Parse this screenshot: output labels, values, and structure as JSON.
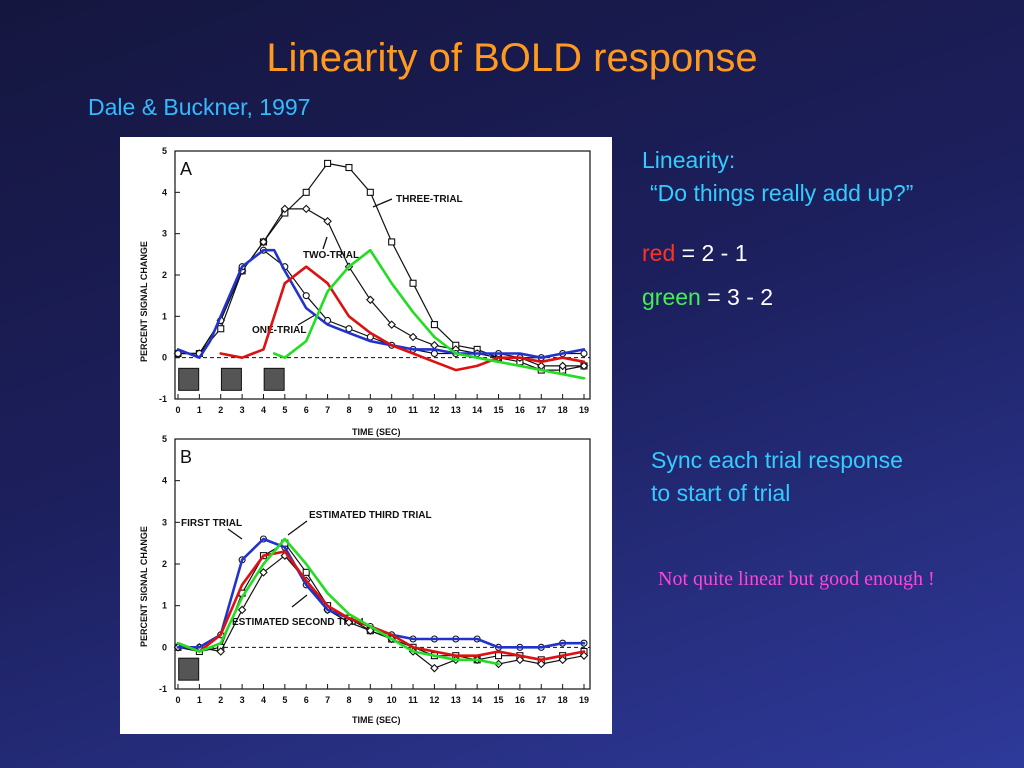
{
  "slide": {
    "title": "Linearity of BOLD response",
    "citation": "Dale & Buckner, 1997",
    "linearity_heading": "Linearity:",
    "linearity_question": "“Do things really add up?”",
    "red_word": "red",
    "red_formula": " = 2 - 1",
    "green_word": "green",
    "green_formula": " = 3 - 2",
    "sync_text_line1": "Sync each trial response",
    "sync_text_line2": "to start of trial",
    "note": "Not quite linear but good enough !"
  },
  "chart_data": [
    {
      "type": "line",
      "panel": "A",
      "xlabel": "TIME (SEC)",
      "ylabel": "PERCENT SIGNAL CHANGE",
      "xlim": [
        0,
        19
      ],
      "ylim": [
        -1,
        5
      ],
      "x_ticks": [
        "0",
        "1",
        "2",
        "3",
        "4",
        "5",
        "6",
        "7",
        "8",
        "9",
        "10",
        "11",
        "12",
        "13",
        "14",
        "15",
        "16",
        "17",
        "18",
        "19"
      ],
      "y_ticks": [
        "-1",
        "0",
        "1",
        "2",
        "3",
        "4",
        "5"
      ],
      "stimuli": [
        0.5,
        2.5,
        4.5
      ],
      "annotations": [
        "THREE-TRIAL",
        "TWO-TRIAL",
        "ONE-TRIAL"
      ],
      "series": [
        {
          "name": "THREE-TRIAL",
          "color": "#111111",
          "marker": "square",
          "x": [
            0,
            1,
            2,
            3,
            4,
            5,
            6,
            7,
            8,
            9,
            10,
            11,
            12,
            13,
            14,
            15,
            16,
            17,
            18,
            19
          ],
          "y": [
            0.1,
            0.1,
            0.7,
            2.1,
            2.8,
            3.5,
            4.0,
            4.7,
            4.6,
            4.0,
            2.8,
            1.8,
            0.8,
            0.3,
            0.2,
            0.0,
            -0.1,
            -0.3,
            -0.3,
            -0.2
          ]
        },
        {
          "name": "TWO-TRIAL",
          "color": "#111111",
          "marker": "diamond",
          "x": [
            0,
            1,
            2,
            3,
            4,
            5,
            6,
            7,
            8,
            9,
            10,
            11,
            12,
            13,
            14,
            15,
            16,
            17,
            18,
            19
          ],
          "y": [
            0.1,
            0.1,
            0.9,
            2.1,
            2.8,
            3.6,
            3.6,
            3.3,
            2.2,
            1.4,
            0.8,
            0.5,
            0.3,
            0.2,
            0.1,
            0.0,
            0.0,
            -0.2,
            -0.2,
            -0.2
          ]
        },
        {
          "name": "ONE-TRIAL",
          "color": "#111111",
          "marker": "circle",
          "x": [
            0,
            1,
            2,
            3,
            4,
            5,
            6,
            7,
            8,
            9,
            10,
            11,
            12,
            13,
            14,
            15,
            16,
            17,
            18,
            19
          ],
          "y": [
            0.1,
            0.1,
            0.9,
            2.2,
            2.6,
            2.2,
            1.5,
            0.9,
            0.7,
            0.5,
            0.3,
            0.2,
            0.1,
            0.1,
            0.1,
            0.1,
            0.0,
            0.0,
            0.1,
            0.1
          ]
        },
        {
          "color": "#2233cc",
          "x": [
            0,
            1,
            1.5,
            2,
            3,
            4,
            4.5,
            5,
            6,
            7,
            8,
            9,
            10,
            11,
            12,
            13,
            14,
            15,
            16,
            17,
            18,
            19
          ],
          "y": [
            0.2,
            0.0,
            0.4,
            1.0,
            2.2,
            2.6,
            2.6,
            2.1,
            1.2,
            0.8,
            0.6,
            0.4,
            0.3,
            0.2,
            0.2,
            0.1,
            0.1,
            0.1,
            0.1,
            0.0,
            0.1,
            0.2
          ]
        },
        {
          "color": "#dd1111",
          "x": [
            2,
            3,
            4,
            5,
            6,
            7,
            8,
            9,
            10,
            11,
            12,
            13,
            14,
            15,
            16,
            17,
            18,
            19
          ],
          "y": [
            0.1,
            0.0,
            0.2,
            1.8,
            2.2,
            1.8,
            1.0,
            0.6,
            0.3,
            0.1,
            -0.1,
            -0.3,
            -0.2,
            0.0,
            0.0,
            -0.1,
            0.0,
            -0.1
          ]
        },
        {
          "color": "#22dd22",
          "x": [
            4.5,
            5,
            6,
            7,
            8,
            9,
            10,
            11,
            12,
            13,
            14,
            15,
            16,
            17,
            18,
            19
          ],
          "y": [
            0.1,
            0.0,
            0.4,
            1.6,
            2.2,
            2.6,
            1.8,
            1.1,
            0.5,
            0.1,
            0.0,
            -0.1,
            -0.2,
            -0.3,
            -0.4,
            -0.5
          ]
        }
      ]
    },
    {
      "type": "line",
      "panel": "B",
      "xlabel": "TIME (SEC)",
      "ylabel": "PERCENT SIGNAL CHANGE",
      "xlim": [
        0,
        19
      ],
      "ylim": [
        -1,
        5
      ],
      "x_ticks": [
        "0",
        "1",
        "2",
        "3",
        "4",
        "5",
        "6",
        "7",
        "8",
        "9",
        "10",
        "11",
        "12",
        "13",
        "14",
        "15",
        "16",
        "17",
        "18",
        "19"
      ],
      "y_ticks": [
        "-1",
        "0",
        "1",
        "2",
        "3",
        "4",
        "5"
      ],
      "stimuli": [
        0.5
      ],
      "annotations": [
        "FIRST TRIAL",
        "ESTIMATED THIRD TRIAL",
        "ESTIMATED SECOND TRIAL"
      ],
      "series": [
        {
          "name": "FIRST TRIAL",
          "color": "#111111",
          "marker": "circle",
          "x": [
            0,
            1,
            2,
            3,
            4,
            5,
            6,
            7,
            8,
            9,
            10,
            11,
            12,
            13,
            14,
            15,
            16,
            17,
            18,
            19
          ],
          "y": [
            0.0,
            0.0,
            0.3,
            2.1,
            2.6,
            2.4,
            1.5,
            0.9,
            0.7,
            0.5,
            0.3,
            0.2,
            0.2,
            0.2,
            0.2,
            0.0,
            0.0,
            0.0,
            0.1,
            0.1
          ]
        },
        {
          "name": "ESTIMATED SECOND TRIAL",
          "color": "#111111",
          "marker": "square",
          "x": [
            0,
            1,
            2,
            3,
            4,
            5,
            6,
            7,
            8,
            9,
            10,
            11,
            12,
            13,
            14,
            15,
            16,
            17,
            18,
            19
          ],
          "y": [
            0.0,
            -0.1,
            0.0,
            1.3,
            2.2,
            2.5,
            1.8,
            1.0,
            0.7,
            0.4,
            0.2,
            0.0,
            -0.2,
            -0.2,
            -0.3,
            -0.2,
            -0.2,
            -0.3,
            -0.2,
            -0.1
          ]
        },
        {
          "name": "ESTIMATED THIRD TRIAL",
          "color": "#111111",
          "marker": "diamond",
          "x": [
            0,
            1,
            2,
            3,
            4,
            5,
            6,
            7,
            8,
            9,
            10,
            11,
            12,
            13,
            14,
            15,
            16,
            17,
            18,
            19
          ],
          "y": [
            0.0,
            0.0,
            -0.1,
            0.9,
            1.8,
            2.2,
            1.6,
            0.9,
            0.6,
            0.4,
            0.2,
            -0.1,
            -0.5,
            -0.3,
            -0.3,
            -0.4,
            -0.3,
            -0.4,
            -0.3,
            -0.2
          ]
        },
        {
          "color": "#2233cc",
          "x": [
            0,
            1,
            2,
            3,
            4,
            5,
            6,
            7,
            8,
            9,
            10,
            11,
            12,
            13,
            14,
            15,
            16,
            17,
            18,
            19
          ],
          "y": [
            0.0,
            0.0,
            0.3,
            2.1,
            2.6,
            2.4,
            1.5,
            0.9,
            0.7,
            0.5,
            0.3,
            0.2,
            0.2,
            0.2,
            0.2,
            0.0,
            0.0,
            0.0,
            0.1,
            0.1
          ]
        },
        {
          "color": "#dd1111",
          "x": [
            0,
            1,
            2,
            3,
            4,
            5,
            6,
            7,
            8,
            9,
            10,
            11,
            12,
            13,
            14,
            15,
            16,
            17,
            18,
            19
          ],
          "y": [
            0.1,
            -0.1,
            0.3,
            1.5,
            2.2,
            2.3,
            1.6,
            1.0,
            0.7,
            0.5,
            0.3,
            0.0,
            -0.1,
            -0.2,
            -0.2,
            -0.1,
            -0.2,
            -0.3,
            -0.2,
            -0.1
          ]
        },
        {
          "color": "#22dd22",
          "x": [
            0,
            1,
            2,
            3,
            4,
            5,
            6,
            7,
            8,
            9,
            10,
            11,
            12,
            13,
            14,
            15
          ],
          "y": [
            0.1,
            -0.1,
            0.1,
            1.2,
            2.0,
            2.6,
            2.0,
            1.3,
            0.8,
            0.5,
            0.2,
            -0.1,
            -0.2,
            -0.3,
            -0.3,
            -0.4
          ]
        }
      ]
    }
  ]
}
